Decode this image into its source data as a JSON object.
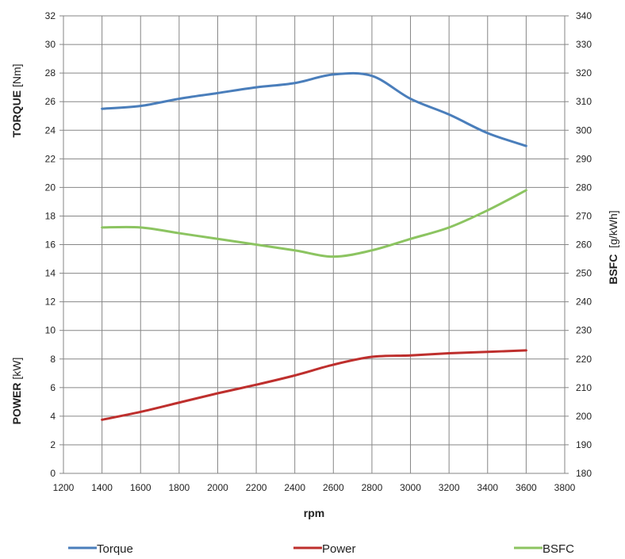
{
  "chart_data": {
    "type": "line",
    "xlabel": "rpm",
    "ylabel_left_top": {
      "bold": "TORQUE",
      "unit": " [Nm]"
    },
    "ylabel_left_bottom": {
      "bold": "POWER",
      "unit": " [kW]"
    },
    "ylabel_right": {
      "bold": "BSFC",
      "unit": "  [g/kWh]"
    },
    "xlim": [
      1200,
      3800
    ],
    "x_ticks": [
      1200,
      1400,
      1600,
      1800,
      2000,
      2200,
      2400,
      2600,
      2800,
      3000,
      3200,
      3400,
      3600,
      3800
    ],
    "ylim_left": [
      0,
      32
    ],
    "y_ticks_left": [
      0,
      2,
      4,
      6,
      8,
      10,
      12,
      14,
      16,
      18,
      20,
      22,
      24,
      26,
      28,
      30,
      32
    ],
    "ylim_right": [
      180,
      340
    ],
    "y_ticks_right": [
      180,
      190,
      200,
      210,
      220,
      230,
      240,
      250,
      260,
      270,
      280,
      290,
      300,
      310,
      320,
      330,
      340
    ],
    "grid": true,
    "legend_position": "bottom",
    "series": [
      {
        "name": "Torque",
        "axis": "left",
        "color": "#4a7ebb",
        "x": [
          1400,
          1600,
          1800,
          2000,
          2200,
          2400,
          2600,
          2800,
          3000,
          3200,
          3400,
          3600
        ],
        "values": [
          25.5,
          25.7,
          26.2,
          26.6,
          27.0,
          27.3,
          27.9,
          27.8,
          26.2,
          25.1,
          23.8,
          22.9
        ]
      },
      {
        "name": "Power",
        "axis": "left",
        "color": "#be2f2d",
        "x": [
          1400,
          1600,
          1800,
          2000,
          2200,
          2400,
          2600,
          2800,
          3000,
          3200,
          3400,
          3600
        ],
        "values": [
          3.75,
          4.3,
          4.95,
          5.6,
          6.2,
          6.85,
          7.6,
          8.15,
          8.25,
          8.4,
          8.5,
          8.6
        ]
      },
      {
        "name": "BSFC",
        "axis": "right",
        "color": "#8cc461",
        "x": [
          1400,
          1600,
          1800,
          2000,
          2200,
          2400,
          2600,
          2800,
          3000,
          3200,
          3400,
          3600
        ],
        "values": [
          266,
          266,
          264,
          262,
          260,
          258,
          255.8,
          258,
          262,
          266,
          272,
          279
        ]
      }
    ]
  }
}
